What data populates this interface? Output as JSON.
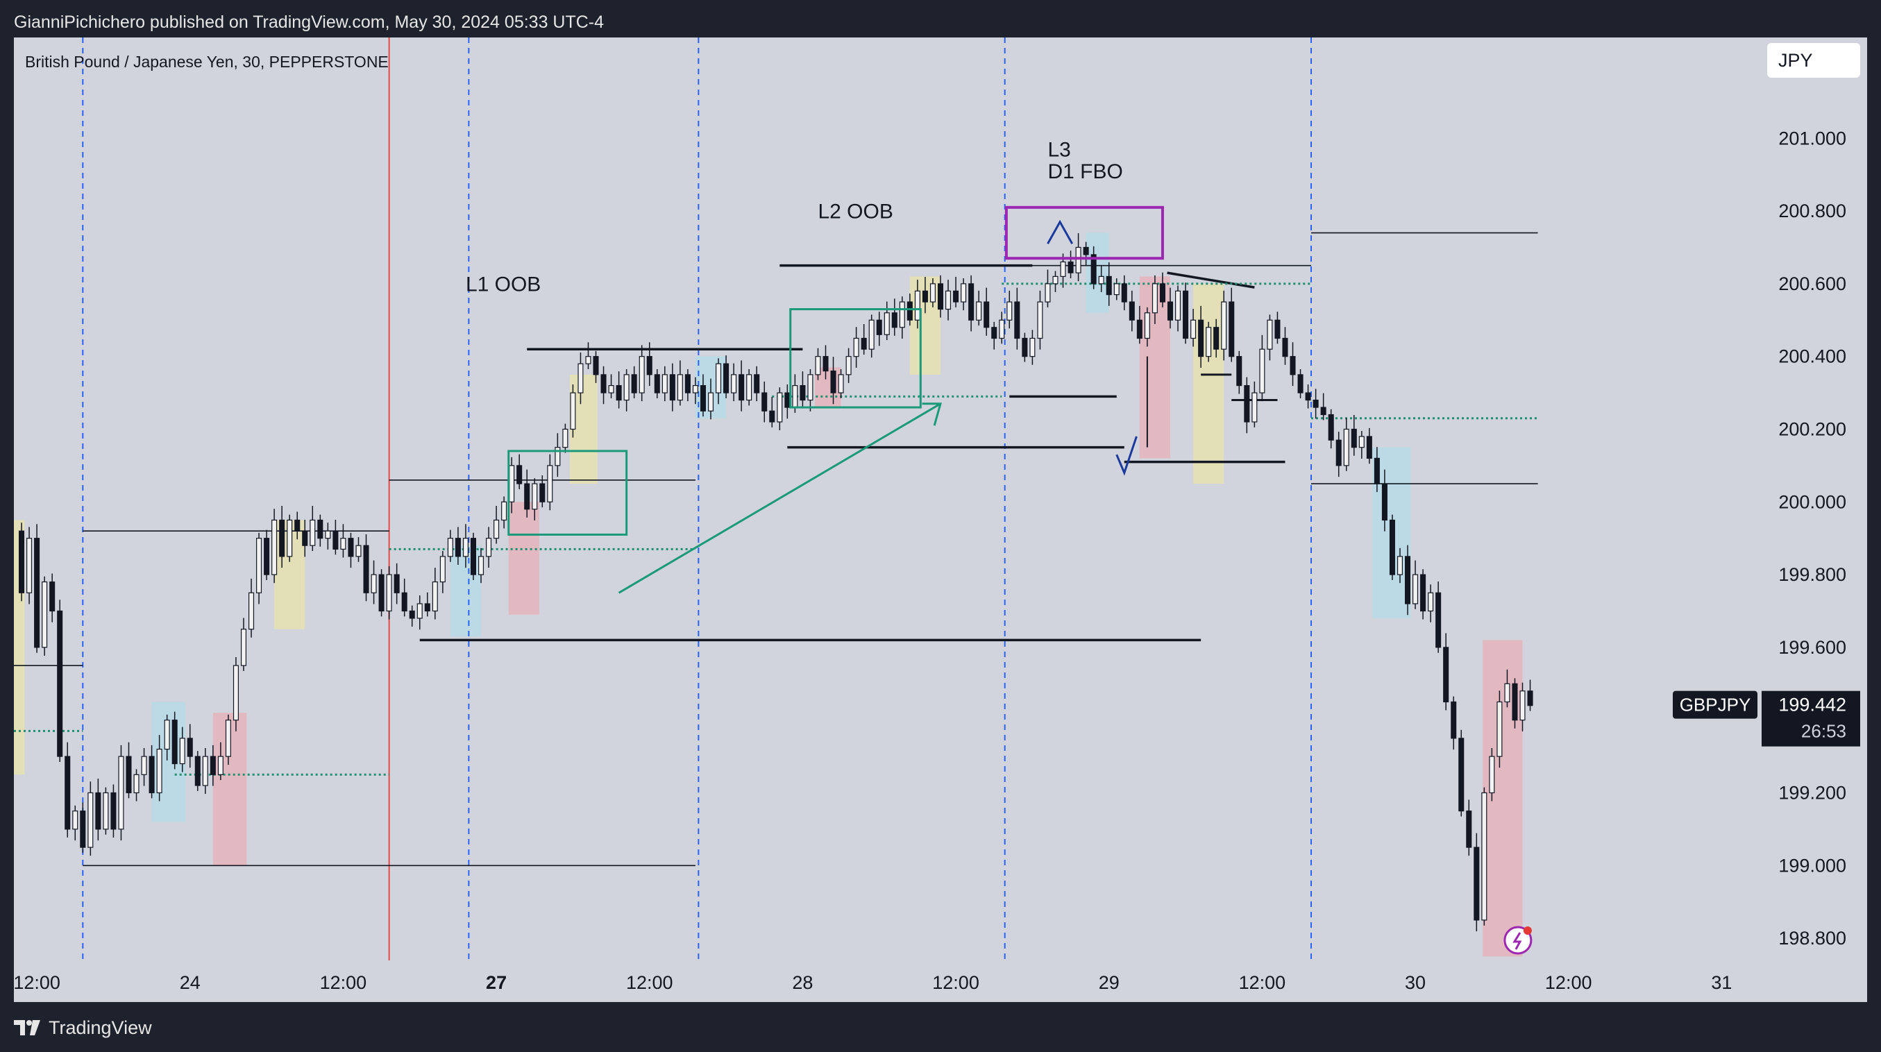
{
  "header": {
    "publisher_text": "GianniPichichero published on TradingView.com, May 30, 2024 05:33 UTC-4"
  },
  "symbol_title": "British Pound / Japanese Yen, 30, PEPPERSTONE",
  "currency_button": "JPY",
  "footer": {
    "brand": "TradingView"
  },
  "colors": {
    "background": "#d1d4dc",
    "candle_up": "#f2f2f2",
    "candle_down": "#131722",
    "wick": "#131722",
    "session_line": "#2962ff",
    "session_line_red": "#e64a4a",
    "level_line": "#131722",
    "dotted_level": "#1f8f6f",
    "green_box": "#1a9a7a",
    "purple_box": "#9c27b0",
    "zone_yellow": "#e6e0b0",
    "zone_blue": "#b7dbe6",
    "zone_red": "#e6b4bc",
    "arrow_blue": "#1a3a9c"
  },
  "chart_data": {
    "type": "candlestick",
    "symbol": "GBPJPY",
    "title": "British Pound / Japanese Yen, 30, PEPPERSTONE",
    "currency": "JPY",
    "ylim": [
      198.72,
      201.22
    ],
    "y_ticks": [
      "201.000",
      "200.800",
      "200.600",
      "200.400",
      "200.200",
      "200.000",
      "199.800",
      "199.600",
      "199.400",
      "199.200",
      "199.000",
      "198.800"
    ],
    "x_ticks": [
      {
        "label": "12:00",
        "t": 0.0,
        "bold": false
      },
      {
        "label": "24",
        "t": 1.0,
        "bold": false
      },
      {
        "label": "12:00",
        "t": 2.0,
        "bold": false
      },
      {
        "label": "27",
        "t": 3.0,
        "bold": true
      },
      {
        "label": "12:00",
        "t": 4.0,
        "bold": false
      },
      {
        "label": "28",
        "t": 5.0,
        "bold": false
      },
      {
        "label": "12:00",
        "t": 6.0,
        "bold": false
      },
      {
        "label": "29",
        "t": 7.0,
        "bold": false
      },
      {
        "label": "12:00",
        "t": 8.0,
        "bold": false
      },
      {
        "label": "30",
        "t": 9.0,
        "bold": false
      },
      {
        "label": "12:00",
        "t": 10.0,
        "bold": false
      },
      {
        "label": "31",
        "t": 11.0,
        "bold": false
      }
    ],
    "x_range": [
      -0.15,
      11.95
    ],
    "last_price": {
      "symbol_label": "GBPJPY",
      "price": "199.442",
      "countdown": "26:53",
      "value": 199.442
    },
    "price_path": [
      [
        -0.15,
        199.92
      ],
      [
        -0.1,
        199.75
      ],
      [
        -0.05,
        199.9
      ],
      [
        0.0,
        199.6
      ],
      [
        0.05,
        199.78
      ],
      [
        0.1,
        199.7
      ],
      [
        0.15,
        199.3
      ],
      [
        0.2,
        199.1
      ],
      [
        0.25,
        199.15
      ],
      [
        0.3,
        199.05
      ],
      [
        0.35,
        199.2
      ],
      [
        0.4,
        199.1
      ],
      [
        0.45,
        199.2
      ],
      [
        0.5,
        199.1
      ],
      [
        0.55,
        199.3
      ],
      [
        0.6,
        199.2
      ],
      [
        0.65,
        199.25
      ],
      [
        0.7,
        199.3
      ],
      [
        0.75,
        199.2
      ],
      [
        0.8,
        199.32
      ],
      [
        0.85,
        199.4
      ],
      [
        0.9,
        199.28
      ],
      [
        0.95,
        199.35
      ],
      [
        1.0,
        199.3
      ],
      [
        1.05,
        199.22
      ],
      [
        1.1,
        199.3
      ],
      [
        1.15,
        199.25
      ],
      [
        1.2,
        199.3
      ],
      [
        1.25,
        199.4
      ],
      [
        1.3,
        199.55
      ],
      [
        1.35,
        199.65
      ],
      [
        1.4,
        199.75
      ],
      [
        1.45,
        199.9
      ],
      [
        1.5,
        199.8
      ],
      [
        1.55,
        199.95
      ],
      [
        1.6,
        199.85
      ],
      [
        1.65,
        199.95
      ],
      [
        1.7,
        199.92
      ],
      [
        1.75,
        199.88
      ],
      [
        1.8,
        199.95
      ],
      [
        1.85,
        199.9
      ],
      [
        1.9,
        199.92
      ],
      [
        1.95,
        199.87
      ],
      [
        2.0,
        199.9
      ],
      [
        2.05,
        199.85
      ],
      [
        2.1,
        199.88
      ],
      [
        2.15,
        199.75
      ],
      [
        2.2,
        199.8
      ],
      [
        2.25,
        199.7
      ],
      [
        2.3,
        199.8
      ],
      [
        2.35,
        199.75
      ],
      [
        2.4,
        199.7
      ],
      [
        2.45,
        199.68
      ],
      [
        2.5,
        199.72
      ],
      [
        2.55,
        199.7
      ],
      [
        2.6,
        199.78
      ],
      [
        2.65,
        199.85
      ],
      [
        2.7,
        199.9
      ],
      [
        2.75,
        199.85
      ],
      [
        2.8,
        199.9
      ],
      [
        2.85,
        199.8
      ],
      [
        2.9,
        199.85
      ],
      [
        2.95,
        199.9
      ],
      [
        3.0,
        199.95
      ],
      [
        3.05,
        200.0
      ],
      [
        3.1,
        200.1
      ],
      [
        3.15,
        200.05
      ],
      [
        3.2,
        199.98
      ],
      [
        3.25,
        200.05
      ],
      [
        3.3,
        200.0
      ],
      [
        3.35,
        200.1
      ],
      [
        3.4,
        200.15
      ],
      [
        3.45,
        200.2
      ],
      [
        3.5,
        200.3
      ],
      [
        3.55,
        200.38
      ],
      [
        3.6,
        200.4
      ],
      [
        3.65,
        200.35
      ],
      [
        3.7,
        200.3
      ],
      [
        3.75,
        200.32
      ],
      [
        3.8,
        200.28
      ],
      [
        3.85,
        200.35
      ],
      [
        3.9,
        200.3
      ],
      [
        3.95,
        200.4
      ],
      [
        4.0,
        200.35
      ],
      [
        4.05,
        200.3
      ],
      [
        4.1,
        200.35
      ],
      [
        4.15,
        200.28
      ],
      [
        4.2,
        200.35
      ],
      [
        4.25,
        200.3
      ],
      [
        4.3,
        200.32
      ],
      [
        4.35,
        200.25
      ],
      [
        4.4,
        200.3
      ],
      [
        4.45,
        200.38
      ],
      [
        4.5,
        200.3
      ],
      [
        4.55,
        200.35
      ],
      [
        4.6,
        200.28
      ],
      [
        4.65,
        200.35
      ],
      [
        4.7,
        200.3
      ],
      [
        4.75,
        200.25
      ],
      [
        4.8,
        200.22
      ],
      [
        4.85,
        200.3
      ],
      [
        4.9,
        200.26
      ],
      [
        4.95,
        200.32
      ],
      [
        5.0,
        200.28
      ],
      [
        5.05,
        200.35
      ],
      [
        5.1,
        200.4
      ],
      [
        5.15,
        200.36
      ],
      [
        5.2,
        200.3
      ],
      [
        5.25,
        200.35
      ],
      [
        5.3,
        200.4
      ],
      [
        5.35,
        200.45
      ],
      [
        5.4,
        200.42
      ],
      [
        5.45,
        200.5
      ],
      [
        5.5,
        200.46
      ],
      [
        5.55,
        200.52
      ],
      [
        5.6,
        200.48
      ],
      [
        5.65,
        200.55
      ],
      [
        5.7,
        200.5
      ],
      [
        5.75,
        200.58
      ],
      [
        5.8,
        200.55
      ],
      [
        5.85,
        200.6
      ],
      [
        5.9,
        200.53
      ],
      [
        5.95,
        200.58
      ],
      [
        6.0,
        200.55
      ],
      [
        6.05,
        200.6
      ],
      [
        6.1,
        200.5
      ],
      [
        6.15,
        200.55
      ],
      [
        6.2,
        200.48
      ],
      [
        6.25,
        200.45
      ],
      [
        6.3,
        200.5
      ],
      [
        6.35,
        200.55
      ],
      [
        6.4,
        200.45
      ],
      [
        6.45,
        200.4
      ],
      [
        6.5,
        200.45
      ],
      [
        6.55,
        200.55
      ],
      [
        6.6,
        200.6
      ],
      [
        6.65,
        200.62
      ],
      [
        6.7,
        200.66
      ],
      [
        6.75,
        200.63
      ],
      [
        6.8,
        200.7
      ],
      [
        6.85,
        200.68
      ],
      [
        6.9,
        200.6
      ],
      [
        6.95,
        200.62
      ],
      [
        7.0,
        200.57
      ],
      [
        7.05,
        200.6
      ],
      [
        7.1,
        200.55
      ],
      [
        7.15,
        200.5
      ],
      [
        7.2,
        200.45
      ],
      [
        7.25,
        200.52
      ],
      [
        7.3,
        200.6
      ],
      [
        7.35,
        200.55
      ],
      [
        7.4,
        200.5
      ],
      [
        7.45,
        200.58
      ],
      [
        7.5,
        200.45
      ],
      [
        7.55,
        200.5
      ],
      [
        7.6,
        200.4
      ],
      [
        7.65,
        200.48
      ],
      [
        7.7,
        200.42
      ],
      [
        7.75,
        200.55
      ],
      [
        7.8,
        200.4
      ],
      [
        7.85,
        200.32
      ],
      [
        7.9,
        200.22
      ],
      [
        7.95,
        200.3
      ],
      [
        8.0,
        200.42
      ],
      [
        8.05,
        200.5
      ],
      [
        8.1,
        200.45
      ],
      [
        8.15,
        200.4
      ],
      [
        8.2,
        200.35
      ],
      [
        8.25,
        200.3
      ],
      [
        8.3,
        200.28
      ],
      [
        8.35,
        200.26
      ],
      [
        8.4,
        200.24
      ],
      [
        8.45,
        200.17
      ],
      [
        8.5,
        200.1
      ],
      [
        8.55,
        200.2
      ],
      [
        8.6,
        200.15
      ],
      [
        8.65,
        200.18
      ],
      [
        8.7,
        200.12
      ],
      [
        8.75,
        200.05
      ],
      [
        8.8,
        199.95
      ],
      [
        8.85,
        199.8
      ],
      [
        8.9,
        199.85
      ],
      [
        8.95,
        199.72
      ],
      [
        9.0,
        199.8
      ],
      [
        9.05,
        199.7
      ],
      [
        9.1,
        199.75
      ],
      [
        9.15,
        199.6
      ],
      [
        9.2,
        199.45
      ],
      [
        9.25,
        199.35
      ],
      [
        9.3,
        199.15
      ],
      [
        9.35,
        199.05
      ],
      [
        9.4,
        198.85
      ],
      [
        9.45,
        199.2
      ],
      [
        9.5,
        199.3
      ],
      [
        9.55,
        199.45
      ],
      [
        9.6,
        199.5
      ],
      [
        9.65,
        199.4
      ],
      [
        9.7,
        199.48
      ],
      [
        9.75,
        199.44
      ]
    ]
  }
}
